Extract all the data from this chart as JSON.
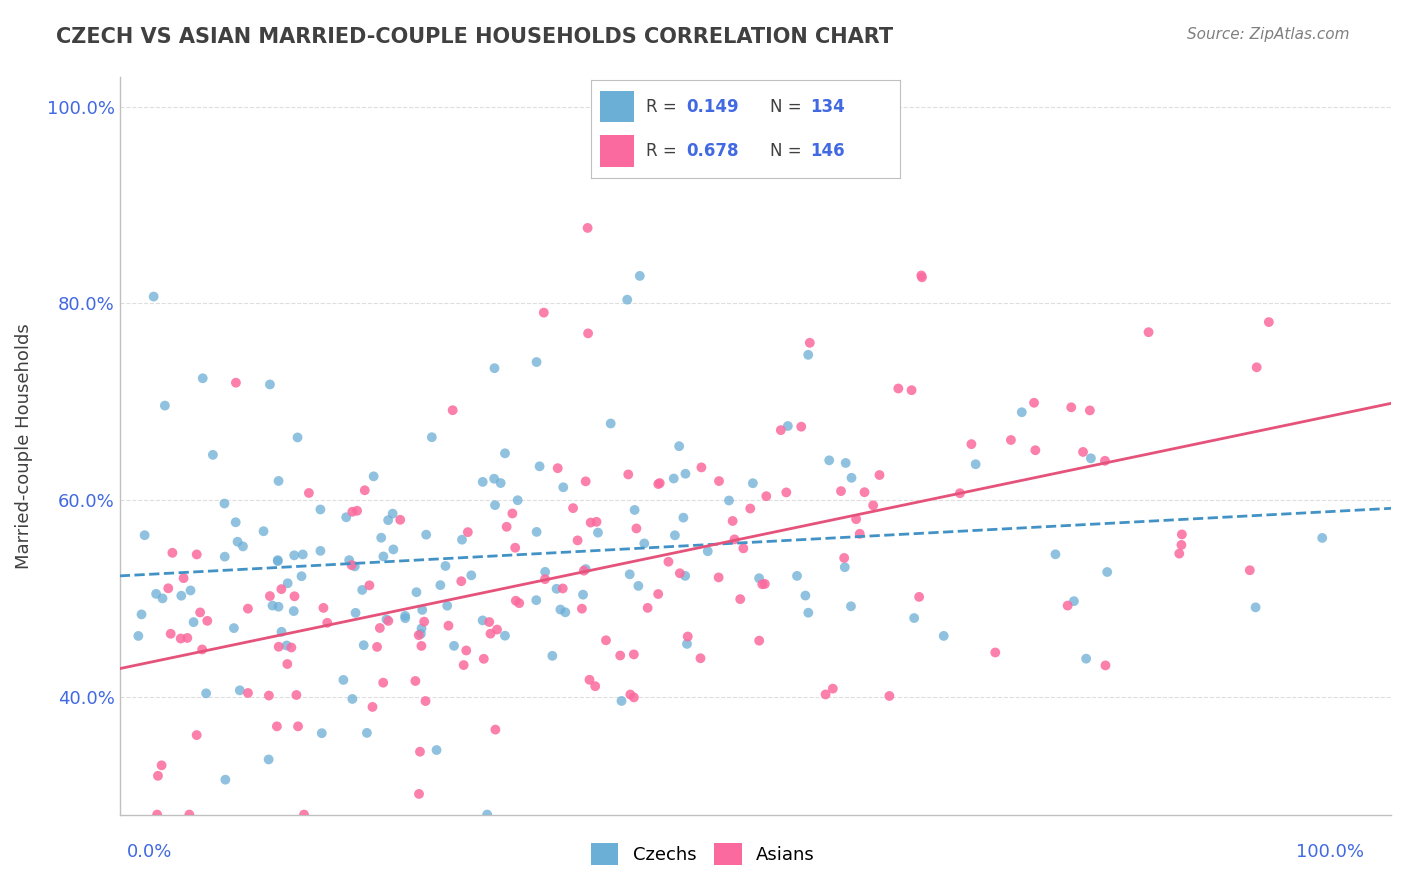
{
  "title": "CZECH VS ASIAN MARRIED-COUPLE HOUSEHOLDS CORRELATION CHART",
  "source": "Source: ZipAtlas.com",
  "ylabel": "Married-couple Households",
  "xmin": 0.0,
  "xmax": 100.0,
  "ymin": 28.0,
  "ymax": 103.0,
  "yticks": [
    40.0,
    60.0,
    80.0,
    100.0
  ],
  "ytick_labels": [
    "40.0%",
    "60.0%",
    "80.0%",
    "100.0%"
  ],
  "czech_color": "#6baed6",
  "czech_color_dark": "#4292c6",
  "asian_color": "#fb6a9e",
  "asian_color_dark": "#e5527a",
  "czech_R": 0.149,
  "czech_N": 134,
  "asian_R": 0.678,
  "asian_N": 146,
  "legend_label_czech": "Czechs",
  "legend_label_asian": "Asians",
  "background_color": "#ffffff",
  "grid_color": "#d0d0d0",
  "title_color": "#404040",
  "source_color": "#808080",
  "value_color": "#4169e1",
  "seed": 42
}
